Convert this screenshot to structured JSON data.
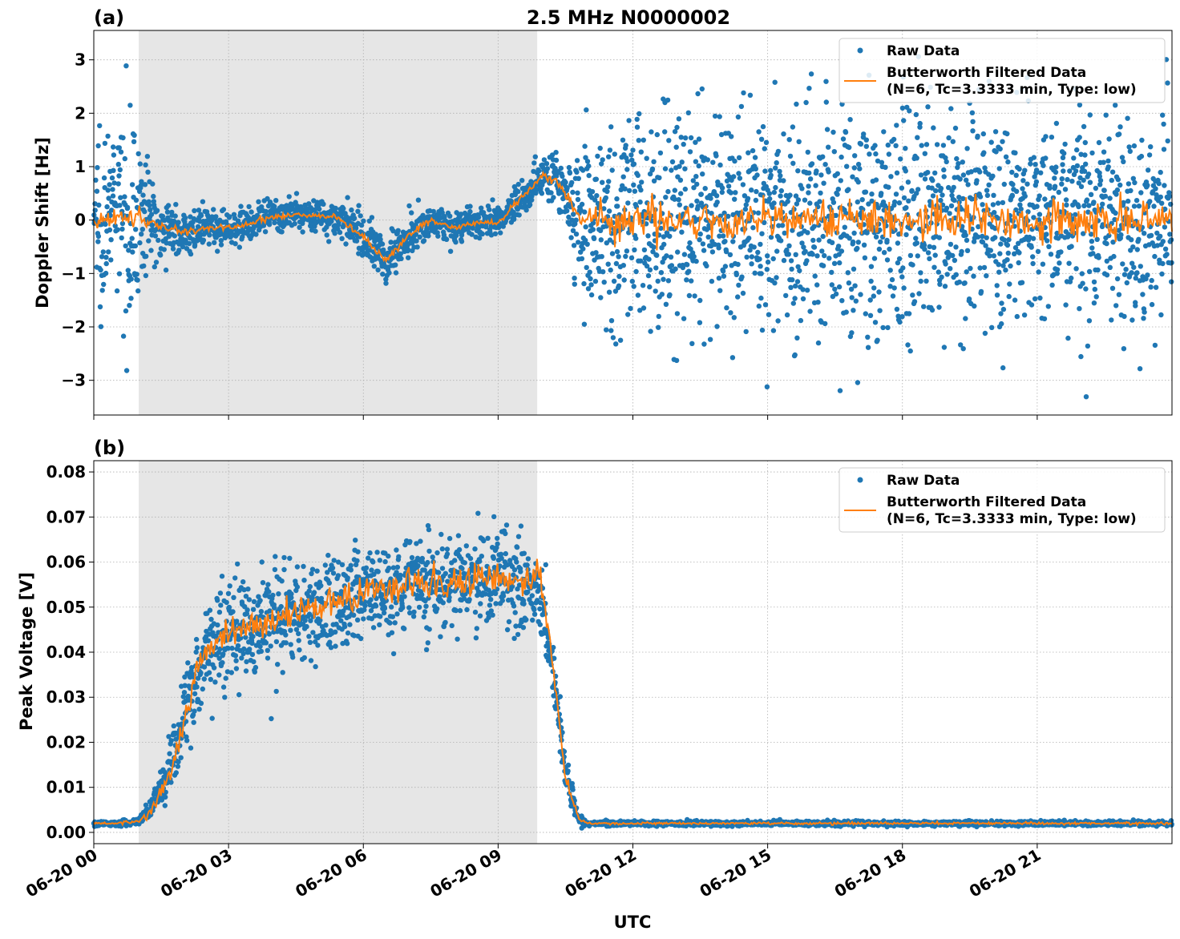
{
  "figure": {
    "title": "2.5 MHz N0000002",
    "xlabel": "UTC"
  },
  "colors": {
    "raw": "#1f77b4",
    "filtered": "#ff7f0e",
    "shade": "#e6e6e6",
    "grid": "#b0b0b0"
  },
  "chart_data": [
    {
      "type": "scatter",
      "panel_label": "(a)",
      "title": "2.5 MHz N0000002",
      "xlabel": "",
      "ylabel": "Doppler Shift [Hz]",
      "xlim_hours": [
        0,
        24
      ],
      "ylim": [
        -3.65,
        3.55
      ],
      "yticks": [
        -3,
        -2,
        -1,
        0,
        1,
        2,
        3
      ],
      "ytick_labels": [
        "−3",
        "−2",
        "−1",
        "0",
        "1",
        "2",
        "3"
      ],
      "grid": true,
      "legend_position": "top-right",
      "shaded_interval_hours": [
        1.0,
        9.87
      ],
      "series": [
        {
          "name": "Raw Data",
          "kind": "scatter",
          "x_hours": [
            0,
            0.5,
            0.9,
            1.1,
            1.5,
            2.0,
            2.5,
            3.0,
            3.5,
            4.0,
            4.5,
            5.0,
            5.5,
            6.0,
            6.5,
            7.0,
            7.5,
            8.0,
            8.5,
            9.0,
            9.5,
            10.0,
            10.3,
            10.7,
            11.0,
            12.0,
            14.0,
            16.0,
            18.0,
            20.0,
            22.0,
            24.0
          ],
          "y_center": [
            0.1,
            0.15,
            0.1,
            0.05,
            -0.1,
            -0.25,
            -0.15,
            -0.15,
            -0.05,
            0.05,
            0.1,
            0.1,
            0.0,
            -0.3,
            -0.75,
            -0.3,
            0.0,
            -0.15,
            -0.05,
            -0.05,
            0.4,
            0.85,
            0.75,
            0.2,
            -0.1,
            0.0,
            0.0,
            0.0,
            0.0,
            0.0,
            0.0,
            0.0
          ],
          "y_spread": [
            2.0,
            2.0,
            2.0,
            1.5,
            0.6,
            0.45,
            0.4,
            0.35,
            0.35,
            0.35,
            0.35,
            0.35,
            0.4,
            0.45,
            0.5,
            0.45,
            0.35,
            0.35,
            0.35,
            0.35,
            0.4,
            0.45,
            0.6,
            1.2,
            2.2,
            2.5,
            2.5,
            2.5,
            2.5,
            2.5,
            2.5,
            2.5
          ]
        },
        {
          "name": "Butterworth Filtered Data\n(N=6, Tc=3.3333 min, Type: low)",
          "kind": "line",
          "x_hours": [
            0,
            0.5,
            0.9,
            1.1,
            1.5,
            2.0,
            2.5,
            3.0,
            3.5,
            4.0,
            4.5,
            5.0,
            5.5,
            6.0,
            6.5,
            7.0,
            7.5,
            8.0,
            8.5,
            9.0,
            9.5,
            10.0,
            10.3,
            10.7,
            11.0,
            12.0,
            14.0,
            16.0,
            18.0,
            20.0,
            22.0,
            24.0
          ],
          "y": [
            0.0,
            0.05,
            0.05,
            0.0,
            -0.1,
            -0.25,
            -0.15,
            -0.15,
            -0.05,
            0.05,
            0.1,
            0.1,
            0.0,
            -0.3,
            -0.75,
            -0.3,
            0.0,
            -0.15,
            -0.05,
            -0.05,
            0.4,
            0.85,
            0.75,
            0.2,
            -0.05,
            0.0,
            0.0,
            0.0,
            0.0,
            0.0,
            0.0,
            0.0
          ],
          "noise": [
            0.15,
            0.15,
            0.15,
            0.1,
            0.06,
            0.05,
            0.04,
            0.04,
            0.04,
            0.04,
            0.04,
            0.04,
            0.04,
            0.05,
            0.05,
            0.05,
            0.04,
            0.04,
            0.04,
            0.04,
            0.05,
            0.05,
            0.06,
            0.1,
            0.2,
            0.25,
            0.25,
            0.25,
            0.25,
            0.25,
            0.25,
            0.25
          ]
        }
      ],
      "legend": [
        "Raw Data",
        "Butterworth Filtered Data",
        "(N=6, Tc=3.3333 min, Type: low)"
      ]
    },
    {
      "type": "scatter",
      "panel_label": "(b)",
      "title": "",
      "xlabel": "UTC",
      "ylabel": "Peak Voltage [V]",
      "xlim_hours": [
        0,
        24
      ],
      "ylim": [
        -0.0025,
        0.0825
      ],
      "yticks": [
        0.0,
        0.01,
        0.02,
        0.03,
        0.04,
        0.05,
        0.06,
        0.07,
        0.08
      ],
      "ytick_labels": [
        "0.00",
        "0.01",
        "0.02",
        "0.03",
        "0.04",
        "0.05",
        "0.06",
        "0.07",
        "0.08"
      ],
      "xticks_hours": [
        0,
        3,
        6,
        9,
        12,
        15,
        18,
        21
      ],
      "xtick_labels": [
        "06-20 00",
        "06-20 03",
        "06-20 06",
        "06-20 09",
        "06-20 12",
        "06-20 15",
        "06-20 18",
        "06-20 21"
      ],
      "grid": true,
      "legend_position": "top-right",
      "shaded_interval_hours": [
        1.0,
        9.87
      ],
      "series": [
        {
          "name": "Raw Data",
          "kind": "scatter",
          "x_hours": [
            0,
            0.5,
            1.0,
            1.3,
            1.6,
            1.9,
            2.2,
            2.5,
            3.0,
            3.5,
            4.0,
            5.0,
            6.0,
            7.0,
            8.0,
            9.0,
            9.5,
            9.9,
            10.1,
            10.3,
            10.5,
            10.8,
            11.0,
            12.0,
            15.0,
            18.0,
            21.0,
            24.0
          ],
          "y_center": [
            0.002,
            0.002,
            0.0025,
            0.006,
            0.012,
            0.022,
            0.032,
            0.041,
            0.044,
            0.046,
            0.047,
            0.05,
            0.053,
            0.055,
            0.055,
            0.057,
            0.055,
            0.055,
            0.045,
            0.03,
            0.012,
            0.003,
            0.002,
            0.002,
            0.002,
            0.002,
            0.002,
            0.002
          ],
          "y_spread": [
            0.0006,
            0.0006,
            0.0008,
            0.003,
            0.006,
            0.01,
            0.013,
            0.014,
            0.013,
            0.013,
            0.013,
            0.013,
            0.012,
            0.012,
            0.012,
            0.012,
            0.012,
            0.012,
            0.01,
            0.008,
            0.005,
            0.0015,
            0.0007,
            0.0006,
            0.0006,
            0.0006,
            0.0006,
            0.0006
          ]
        },
        {
          "name": "Butterworth Filtered Data\n(N=6, Tc=3.3333 min, Type: low)",
          "kind": "line",
          "x_hours": [
            0,
            0.5,
            1.0,
            1.3,
            1.6,
            1.9,
            2.2,
            2.5,
            3.0,
            3.5,
            4.0,
            5.0,
            6.0,
            7.0,
            8.0,
            9.0,
            9.5,
            9.9,
            10.1,
            10.3,
            10.5,
            10.8,
            11.0,
            12.0,
            15.0,
            18.0,
            21.0,
            24.0
          ],
          "y": [
            0.002,
            0.002,
            0.0025,
            0.005,
            0.011,
            0.02,
            0.032,
            0.041,
            0.044,
            0.046,
            0.047,
            0.05,
            0.053,
            0.055,
            0.055,
            0.057,
            0.055,
            0.058,
            0.046,
            0.03,
            0.012,
            0.003,
            0.002,
            0.002,
            0.002,
            0.002,
            0.002,
            0.002
          ],
          "noise": [
            0.0002,
            0.0002,
            0.0003,
            0.001,
            0.0015,
            0.002,
            0.0025,
            0.0025,
            0.0025,
            0.0025,
            0.0025,
            0.0025,
            0.0025,
            0.0025,
            0.0025,
            0.0025,
            0.0025,
            0.0025,
            0.002,
            0.0015,
            0.001,
            0.0003,
            0.0002,
            0.0002,
            0.0002,
            0.0002,
            0.0002,
            0.0002
          ]
        }
      ],
      "legend": [
        "Raw Data",
        "Butterworth Filtered Data",
        "(N=6, Tc=3.3333 min, Type: low)"
      ]
    }
  ]
}
